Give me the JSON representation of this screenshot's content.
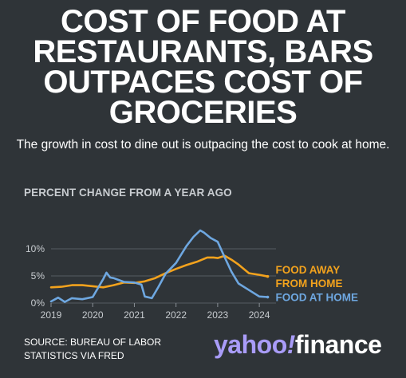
{
  "header": {
    "title_lines": [
      "COST OF FOOD AT",
      "RESTAURANTS, BARS",
      "OUTPACES COST OF",
      "GROCERIES"
    ],
    "subtitle": "The growth in cost to dine out is outpacing the cost to cook at home."
  },
  "chart_data": {
    "type": "line",
    "ylabel": "PERCENT CHANGE FROM A YEAR AGO",
    "xlabel": "",
    "ylim": [
      0,
      15
    ],
    "xlim": [
      2019,
      2024.4
    ],
    "yticks": [
      0,
      5,
      10
    ],
    "ytick_labels": [
      "0%",
      "5%",
      "10%"
    ],
    "xticks": [
      2019,
      2020,
      2021,
      2022,
      2023,
      2024
    ],
    "xtick_labels": [
      "2019",
      "2020",
      "2021",
      "2022",
      "2023",
      "2024"
    ],
    "grid": true,
    "series": [
      {
        "name": "FOOD AWAY FROM HOME",
        "name_lines": [
          "FOOD AWAY",
          "FROM HOME"
        ],
        "color": "#f2a21d",
        "x": [
          2019.0,
          2019.25,
          2019.5,
          2019.75,
          2020.0,
          2020.25,
          2020.5,
          2020.75,
          2021.0,
          2021.25,
          2021.5,
          2021.75,
          2022.0,
          2022.25,
          2022.5,
          2022.75,
          2022.9,
          2023.0,
          2023.17,
          2023.33,
          2023.5,
          2023.75,
          2024.0,
          2024.2
        ],
        "values": [
          2.9,
          3.0,
          3.3,
          3.3,
          3.1,
          2.9,
          3.3,
          3.8,
          3.7,
          4.0,
          4.6,
          5.5,
          6.3,
          7.0,
          7.6,
          8.4,
          8.4,
          8.3,
          8.7,
          8.0,
          7.1,
          5.5,
          5.2,
          4.9
        ]
      },
      {
        "name": "FOOD AT HOME",
        "name_lines": [
          "FOOD AT HOME"
        ],
        "color": "#6ea7e0",
        "x": [
          2019.0,
          2019.17,
          2019.33,
          2019.5,
          2019.75,
          2020.0,
          2020.25,
          2020.33,
          2020.42,
          2020.5,
          2020.75,
          2021.0,
          2021.17,
          2021.25,
          2021.42,
          2021.58,
          2021.75,
          2022.0,
          2022.25,
          2022.42,
          2022.58,
          2022.67,
          2022.83,
          2023.0,
          2023.17,
          2023.33,
          2023.5,
          2023.75,
          2024.0,
          2024.2
        ],
        "values": [
          0.3,
          1.0,
          0.2,
          0.9,
          0.7,
          1.1,
          4.4,
          5.6,
          4.7,
          4.6,
          3.9,
          3.8,
          3.4,
          1.2,
          0.9,
          3.0,
          5.4,
          7.4,
          10.5,
          12.2,
          13.4,
          13.0,
          12.0,
          11.3,
          8.4,
          5.8,
          3.6,
          2.4,
          1.2,
          1.1
        ]
      }
    ]
  },
  "footer": {
    "source_lines": [
      "SOURCE: BUREAU OF LABOR",
      "STATISTICS VIA FRED"
    ],
    "logo": {
      "brand": "yahoo",
      "bang": "!",
      "product": "finance"
    }
  }
}
